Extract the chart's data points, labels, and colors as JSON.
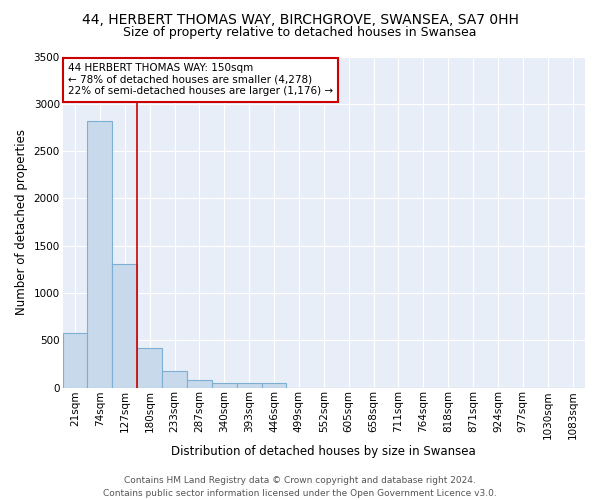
{
  "title_line1": "44, HERBERT THOMAS WAY, BIRCHGROVE, SWANSEA, SA7 0HH",
  "title_line2": "Size of property relative to detached houses in Swansea",
  "xlabel": "Distribution of detached houses by size in Swansea",
  "ylabel": "Number of detached properties",
  "categories": [
    "21sqm",
    "74sqm",
    "127sqm",
    "180sqm",
    "233sqm",
    "287sqm",
    "340sqm",
    "393sqm",
    "446sqm",
    "499sqm",
    "552sqm",
    "605sqm",
    "658sqm",
    "711sqm",
    "764sqm",
    "818sqm",
    "871sqm",
    "924sqm",
    "977sqm",
    "1030sqm",
    "1083sqm"
  ],
  "values": [
    580,
    2820,
    1310,
    420,
    170,
    80,
    50,
    45,
    45,
    0,
    0,
    0,
    0,
    0,
    0,
    0,
    0,
    0,
    0,
    0,
    0
  ],
  "bar_color": "#c9d9ec",
  "bar_edge_color": "#7bafd4",
  "vline_x": 2.5,
  "vline_color": "#cc0000",
  "annotation_text": "44 HERBERT THOMAS WAY: 150sqm\n← 78% of detached houses are smaller (4,278)\n22% of semi-detached houses are larger (1,176) →",
  "annotation_box_facecolor": "white",
  "annotation_box_edgecolor": "#cc0000",
  "footer_line1": "Contains HM Land Registry data © Crown copyright and database right 2024.",
  "footer_line2": "Contains public sector information licensed under the Open Government Licence v3.0.",
  "fig_facecolor": "#ffffff",
  "ax_facecolor": "#e8eef8",
  "grid_color": "#ffffff",
  "ylim": [
    0,
    3500
  ],
  "yticks": [
    0,
    500,
    1000,
    1500,
    2000,
    2500,
    3000,
    3500
  ],
  "title_fontsize": 10,
  "subtitle_fontsize": 9,
  "axis_label_fontsize": 8.5,
  "tick_fontsize": 7.5,
  "annotation_fontsize": 7.5,
  "footer_fontsize": 6.5
}
